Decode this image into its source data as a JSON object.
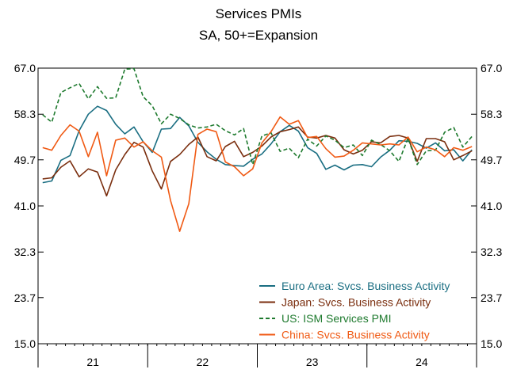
{
  "chart_data": {
    "type": "line",
    "title": "Services PMIs",
    "subtitle": "SA, 50+=Expansion",
    "ylim": [
      15.0,
      67.0
    ],
    "y_ticks": [
      "67.0",
      "58.3",
      "49.7",
      "41.0",
      "32.3",
      "23.7",
      "15.0"
    ],
    "x_range": [
      "2021-01",
      "2024-12"
    ],
    "x_ticks": [
      "21",
      "22",
      "23",
      "24"
    ],
    "grid": false,
    "legend_position": "bottom-right",
    "series": [
      {
        "name": "Euro Area: Svcs. Business Activity",
        "color": "#1a6e82",
        "dash": "solid",
        "x": [
          "2021-01",
          "2021-02",
          "2021-03",
          "2021-04",
          "2021-05",
          "2021-06",
          "2021-07",
          "2021-08",
          "2021-09",
          "2021-10",
          "2021-11",
          "2021-12",
          "2022-01",
          "2022-02",
          "2022-03",
          "2022-04",
          "2022-05",
          "2022-06",
          "2022-07",
          "2022-08",
          "2022-09",
          "2022-10",
          "2022-11",
          "2022-12",
          "2023-01",
          "2023-02",
          "2023-03",
          "2023-04",
          "2023-05",
          "2023-06",
          "2023-07",
          "2023-08",
          "2023-09",
          "2023-10",
          "2023-11",
          "2023-12",
          "2024-01",
          "2024-02",
          "2024-03",
          "2024-04",
          "2024-05",
          "2024-06",
          "2024-07",
          "2024-08",
          "2024-09",
          "2024-10",
          "2024-11",
          "2024-12"
        ],
        "values": [
          45.4,
          45.7,
          49.6,
          50.5,
          55.2,
          58.3,
          59.8,
          59.0,
          56.4,
          54.6,
          55.9,
          53.1,
          51.1,
          55.5,
          55.6,
          57.7,
          56.1,
          53.0,
          51.2,
          49.8,
          48.8,
          48.6,
          48.5,
          49.8,
          50.8,
          52.7,
          55.0,
          56.2,
          55.1,
          52.0,
          50.9,
          47.9,
          48.7,
          47.8,
          48.7,
          48.8,
          48.4,
          50.2,
          51.5,
          53.3,
          53.2,
          52.8,
          51.9,
          52.9,
          51.4,
          51.6,
          49.5,
          51.6
        ]
      },
      {
        "name": "Japan: Svcs. Business Activity",
        "color": "#7a2e0e",
        "dash": "solid",
        "x": [
          "2021-01",
          "2021-02",
          "2021-03",
          "2021-04",
          "2021-05",
          "2021-06",
          "2021-07",
          "2021-08",
          "2021-09",
          "2021-10",
          "2021-11",
          "2021-12",
          "2022-01",
          "2022-02",
          "2022-03",
          "2022-04",
          "2022-05",
          "2022-06",
          "2022-07",
          "2022-08",
          "2022-09",
          "2022-10",
          "2022-11",
          "2022-12",
          "2023-01",
          "2023-02",
          "2023-03",
          "2023-04",
          "2023-05",
          "2023-06",
          "2023-07",
          "2023-08",
          "2023-09",
          "2023-10",
          "2023-11",
          "2023-12",
          "2024-01",
          "2024-02",
          "2024-03",
          "2024-04",
          "2024-05",
          "2024-06",
          "2024-07",
          "2024-08",
          "2024-09",
          "2024-10",
          "2024-11",
          "2024-12"
        ],
        "values": [
          46.1,
          46.3,
          48.3,
          49.5,
          46.5,
          48.0,
          47.4,
          42.9,
          47.8,
          50.7,
          53.0,
          52.1,
          47.6,
          44.2,
          49.4,
          50.7,
          52.6,
          54.0,
          50.3,
          49.5,
          52.2,
          53.2,
          50.3,
          51.1,
          52.3,
          54.0,
          55.0,
          55.4,
          55.9,
          54.0,
          53.8,
          54.3,
          53.8,
          51.6,
          50.8,
          51.5,
          53.1,
          52.9,
          54.1,
          54.3,
          53.8,
          49.4,
          53.7,
          53.7,
          53.1,
          49.7,
          50.5,
          51.4
        ]
      },
      {
        "name": "US: ISM Services PMI",
        "color": "#1e7a2e",
        "dash": "dashed",
        "x": [
          "2021-01",
          "2021-02",
          "2021-03",
          "2021-04",
          "2021-05",
          "2021-06",
          "2021-07",
          "2021-08",
          "2021-09",
          "2021-10",
          "2021-11",
          "2021-12",
          "2022-01",
          "2022-02",
          "2022-03",
          "2022-04",
          "2022-05",
          "2022-06",
          "2022-07",
          "2022-08",
          "2022-09",
          "2022-10",
          "2022-11",
          "2022-12",
          "2023-01",
          "2023-02",
          "2023-03",
          "2023-04",
          "2023-05",
          "2023-06",
          "2023-07",
          "2023-08",
          "2023-09",
          "2023-10",
          "2023-11",
          "2023-12",
          "2024-01",
          "2024-02",
          "2024-03",
          "2024-04",
          "2024-05",
          "2024-06",
          "2024-07",
          "2024-08",
          "2024-09",
          "2024-10",
          "2024-11",
          "2024-12"
        ],
        "values": [
          58.2,
          56.8,
          62.4,
          63.3,
          64.1,
          61.2,
          63.5,
          61.3,
          61.4,
          66.8,
          66.9,
          61.6,
          59.9,
          56.5,
          58.3,
          57.5,
          56.3,
          55.7,
          55.9,
          56.4,
          55.2,
          54.4,
          55.6,
          48.8,
          54.2,
          54.8,
          51.3,
          51.9,
          50.1,
          53.6,
          52.3,
          54.2,
          53.4,
          52.0,
          52.5,
          50.5,
          53.4,
          52.6,
          51.4,
          49.4,
          53.8,
          48.8,
          51.4,
          51.5,
          54.9,
          55.8,
          52.1,
          54.1
        ]
      },
      {
        "name": "China: Svcs. Business Activity",
        "color": "#f05a14",
        "dash": "solid",
        "x": [
          "2021-01",
          "2021-02",
          "2021-03",
          "2021-04",
          "2021-05",
          "2021-06",
          "2021-07",
          "2021-08",
          "2021-09",
          "2021-10",
          "2021-11",
          "2021-12",
          "2022-01",
          "2022-02",
          "2022-03",
          "2022-04",
          "2022-05",
          "2022-06",
          "2022-07",
          "2022-08",
          "2022-09",
          "2022-10",
          "2022-11",
          "2022-12",
          "2023-01",
          "2023-02",
          "2023-03",
          "2023-04",
          "2023-05",
          "2023-06",
          "2023-07",
          "2023-08",
          "2023-09",
          "2023-10",
          "2023-11",
          "2023-12",
          "2024-01",
          "2024-02",
          "2024-03",
          "2024-04",
          "2024-05",
          "2024-06",
          "2024-07",
          "2024-08",
          "2024-09",
          "2024-10",
          "2024-11",
          "2024-12"
        ],
        "values": [
          52.0,
          51.5,
          54.3,
          56.3,
          55.1,
          50.3,
          54.9,
          46.7,
          53.4,
          53.8,
          52.1,
          53.1,
          51.4,
          50.2,
          42.0,
          36.2,
          41.4,
          54.5,
          55.5,
          55.0,
          49.3,
          48.4,
          46.7,
          48.0,
          52.9,
          55.0,
          57.8,
          56.4,
          57.1,
          53.9,
          54.1,
          51.8,
          50.2,
          50.4,
          51.5,
          52.9,
          52.7,
          52.5,
          52.7,
          52.5,
          54.0,
          51.2,
          52.1,
          51.6,
          50.3,
          52.0,
          51.5,
          52.2
        ]
      }
    ]
  }
}
